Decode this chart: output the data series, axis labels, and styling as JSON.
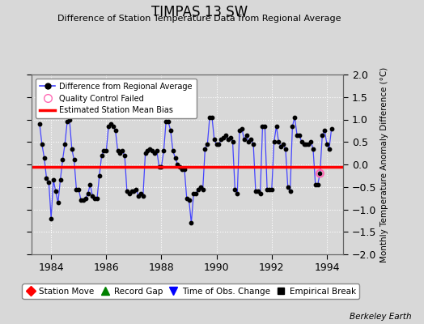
{
  "title": "TIMPAS 13 SW",
  "subtitle": "Difference of Station Temperature Data from Regional Average",
  "ylabel": "Monthly Temperature Anomaly Difference (°C)",
  "xlabel_ticks": [
    1984,
    1986,
    1988,
    1990,
    1992,
    1994
  ],
  "yticks": [
    -2,
    -1.5,
    -1,
    -0.5,
    0,
    0.5,
    1,
    1.5,
    2
  ],
  "ylim": [
    -2,
    2
  ],
  "xlim": [
    1983.3,
    1994.6
  ],
  "bias_value": -0.05,
  "background_color": "#d8d8d8",
  "plot_bg_color": "#d8d8d8",
  "line_color": "#4444ff",
  "bias_color": "#ff0000",
  "marker_color": "#000000",
  "grid_color": "#ffffff",
  "font_color": "#000000",
  "watermark": "Berkeley Earth",
  "qc_fail_x": 1993.75,
  "qc_fail_y": -0.2,
  "bottom_legend": [
    {
      "label": "Station Move",
      "color": "#ff0000",
      "marker": "D"
    },
    {
      "label": "Record Gap",
      "color": "#008000",
      "marker": "^"
    },
    {
      "label": "Time of Obs. Change",
      "color": "#0000ff",
      "marker": "v"
    },
    {
      "label": "Empirical Break",
      "color": "#000000",
      "marker": "s"
    }
  ],
  "data": [
    [
      1983.583,
      0.9
    ],
    [
      1983.667,
      0.45
    ],
    [
      1983.75,
      0.15
    ],
    [
      1983.833,
      -0.3
    ],
    [
      1983.917,
      -0.4
    ],
    [
      1984.0,
      -1.2
    ],
    [
      1984.083,
      -0.35
    ],
    [
      1984.167,
      -0.6
    ],
    [
      1984.25,
      -0.85
    ],
    [
      1984.333,
      -0.35
    ],
    [
      1984.417,
      0.1
    ],
    [
      1984.5,
      0.45
    ],
    [
      1984.583,
      0.95
    ],
    [
      1984.667,
      1.0
    ],
    [
      1984.75,
      0.35
    ],
    [
      1984.833,
      0.1
    ],
    [
      1984.917,
      -0.55
    ],
    [
      1985.0,
      -0.55
    ],
    [
      1985.083,
      -0.8
    ],
    [
      1985.167,
      -0.8
    ],
    [
      1985.25,
      -0.75
    ],
    [
      1985.333,
      -0.65
    ],
    [
      1985.417,
      -0.45
    ],
    [
      1985.5,
      -0.7
    ],
    [
      1985.583,
      -0.75
    ],
    [
      1985.667,
      -0.75
    ],
    [
      1985.75,
      -0.25
    ],
    [
      1985.833,
      0.2
    ],
    [
      1985.917,
      0.3
    ],
    [
      1986.0,
      0.3
    ],
    [
      1986.083,
      0.85
    ],
    [
      1986.167,
      0.9
    ],
    [
      1986.25,
      0.85
    ],
    [
      1986.333,
      0.75
    ],
    [
      1986.417,
      0.3
    ],
    [
      1986.5,
      0.25
    ],
    [
      1986.583,
      0.3
    ],
    [
      1986.667,
      0.2
    ],
    [
      1986.75,
      -0.6
    ],
    [
      1986.833,
      -0.65
    ],
    [
      1986.917,
      -0.6
    ],
    [
      1987.0,
      -0.6
    ],
    [
      1987.083,
      -0.55
    ],
    [
      1987.167,
      -0.7
    ],
    [
      1987.25,
      -0.65
    ],
    [
      1987.333,
      -0.7
    ],
    [
      1987.417,
      0.25
    ],
    [
      1987.5,
      0.3
    ],
    [
      1987.583,
      0.35
    ],
    [
      1987.667,
      0.3
    ],
    [
      1987.75,
      0.25
    ],
    [
      1987.833,
      0.3
    ],
    [
      1987.917,
      -0.05
    ],
    [
      1988.0,
      -0.05
    ],
    [
      1988.083,
      0.3
    ],
    [
      1988.167,
      0.95
    ],
    [
      1988.25,
      0.95
    ],
    [
      1988.333,
      0.75
    ],
    [
      1988.417,
      0.3
    ],
    [
      1988.5,
      0.15
    ],
    [
      1988.583,
      0.0
    ],
    [
      1988.667,
      -0.05
    ],
    [
      1988.75,
      -0.1
    ],
    [
      1988.833,
      -0.1
    ],
    [
      1988.917,
      -0.75
    ],
    [
      1989.0,
      -0.8
    ],
    [
      1989.083,
      -1.3
    ],
    [
      1989.167,
      -0.65
    ],
    [
      1989.25,
      -0.65
    ],
    [
      1989.333,
      -0.55
    ],
    [
      1989.417,
      -0.5
    ],
    [
      1989.5,
      -0.55
    ],
    [
      1989.583,
      0.35
    ],
    [
      1989.667,
      0.45
    ],
    [
      1989.75,
      1.05
    ],
    [
      1989.833,
      1.05
    ],
    [
      1989.917,
      0.55
    ],
    [
      1990.0,
      0.45
    ],
    [
      1990.083,
      0.45
    ],
    [
      1990.167,
      0.55
    ],
    [
      1990.25,
      0.6
    ],
    [
      1990.333,
      0.65
    ],
    [
      1990.417,
      0.55
    ],
    [
      1990.5,
      0.6
    ],
    [
      1990.583,
      0.5
    ],
    [
      1990.667,
      -0.55
    ],
    [
      1990.75,
      -0.65
    ],
    [
      1990.833,
      0.75
    ],
    [
      1990.917,
      0.8
    ],
    [
      1991.0,
      0.55
    ],
    [
      1991.083,
      0.65
    ],
    [
      1991.167,
      0.5
    ],
    [
      1991.25,
      0.55
    ],
    [
      1991.333,
      0.45
    ],
    [
      1991.417,
      -0.6
    ],
    [
      1991.5,
      -0.6
    ],
    [
      1991.583,
      -0.65
    ],
    [
      1991.667,
      0.85
    ],
    [
      1991.75,
      0.85
    ],
    [
      1991.833,
      -0.55
    ],
    [
      1991.917,
      -0.55
    ],
    [
      1992.0,
      -0.55
    ],
    [
      1992.083,
      0.5
    ],
    [
      1992.167,
      0.85
    ],
    [
      1992.25,
      0.5
    ],
    [
      1992.333,
      0.4
    ],
    [
      1992.417,
      0.45
    ],
    [
      1992.5,
      0.35
    ],
    [
      1992.583,
      -0.5
    ],
    [
      1992.667,
      -0.6
    ],
    [
      1992.75,
      0.85
    ],
    [
      1992.833,
      1.05
    ],
    [
      1992.917,
      0.65
    ],
    [
      1993.0,
      0.65
    ],
    [
      1993.083,
      0.5
    ],
    [
      1993.167,
      0.45
    ],
    [
      1993.25,
      0.45
    ],
    [
      1993.333,
      0.45
    ],
    [
      1993.417,
      0.5
    ],
    [
      1993.5,
      0.35
    ],
    [
      1993.583,
      -0.45
    ],
    [
      1993.667,
      -0.45
    ],
    [
      1993.75,
      -0.2
    ],
    [
      1993.833,
      0.65
    ],
    [
      1993.917,
      0.75
    ],
    [
      1994.0,
      0.45
    ],
    [
      1994.083,
      0.35
    ],
    [
      1994.167,
      0.8
    ]
  ]
}
